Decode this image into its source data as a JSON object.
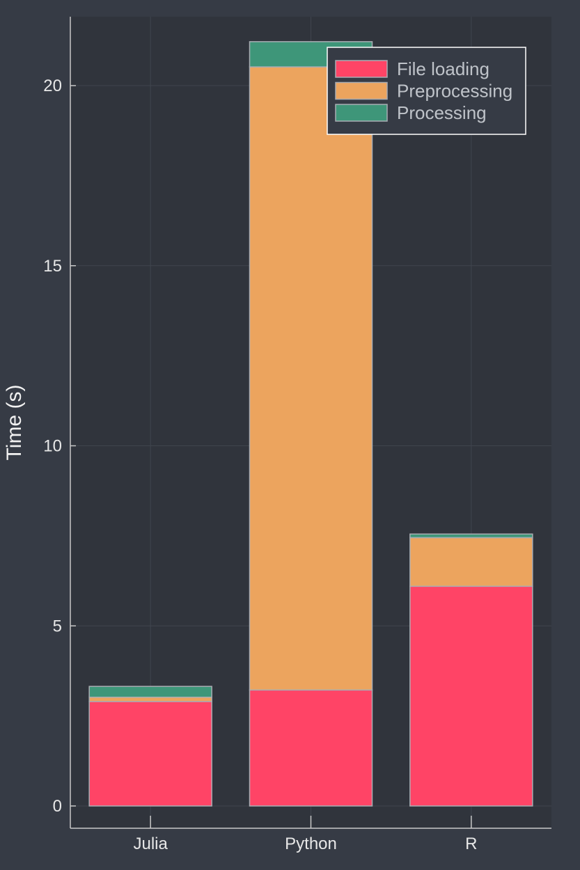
{
  "chart_data": {
    "type": "bar",
    "stacked": true,
    "categories": [
      "Julia",
      "Python",
      "R"
    ],
    "series": [
      {
        "name": "File loading",
        "values": [
          2.9,
          3.22,
          6.1
        ],
        "color": "#ff4466"
      },
      {
        "name": "Preprocessing",
        "values": [
          0.12,
          17.3,
          1.35
        ],
        "color": "#eca45e"
      },
      {
        "name": "Processing",
        "values": [
          0.3,
          0.7,
          0.1
        ],
        "color": "#3e9679"
      }
    ],
    "title": "",
    "xlabel": "",
    "ylabel": "Time (s)",
    "ylim": [
      0,
      21.5
    ],
    "yticks": [
      0,
      5,
      10,
      15,
      20
    ],
    "grid": true,
    "legend_position": "top-right",
    "colors": {
      "background": "#363b45",
      "plot_background": "#30343c",
      "bar_edge": "#a9adb3",
      "grid": "#40454e",
      "axis": "#c8c8c8"
    }
  }
}
